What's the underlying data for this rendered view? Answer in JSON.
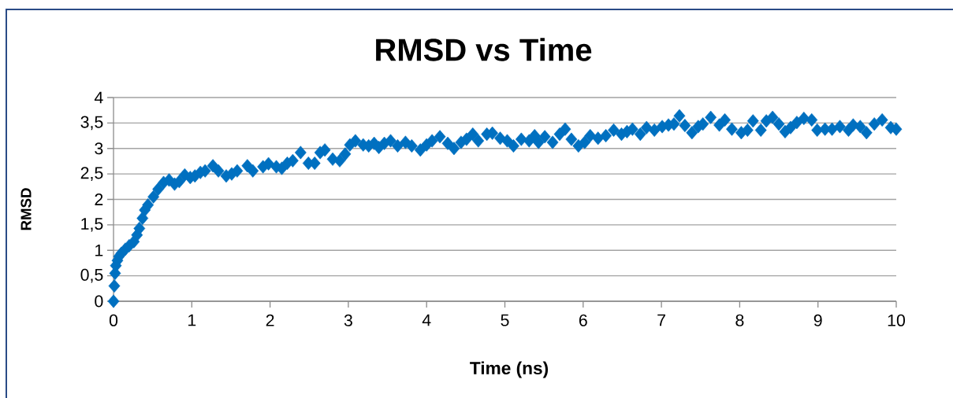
{
  "chart_data": {
    "type": "scatter",
    "title": "RMSD vs Time",
    "xlabel": "Time (ns)",
    "ylabel": "RMSD",
    "x": [
      0,
      0.01,
      0.02,
      0.03,
      0.05,
      0.07,
      0.1,
      0.15,
      0.2,
      0.26,
      0.3,
      0.33,
      0.37,
      0.4,
      0.44,
      0.51,
      0.57,
      0.64,
      0.71,
      0.78,
      0.84,
      0.91,
      0.98,
      1.04,
      1.11,
      1.17,
      1.27,
      1.34,
      1.44,
      1.51,
      1.58,
      1.71,
      1.78,
      1.91,
      1.98,
      2.08,
      2.15,
      2.22,
      2.29,
      2.39,
      2.49,
      2.57,
      2.64,
      2.7,
      2.8,
      2.89,
      2.96,
      3.02,
      3.09,
      3.19,
      3.26,
      3.33,
      3.39,
      3.46,
      3.54,
      3.63,
      3.73,
      3.81,
      3.92,
      4.0,
      4.07,
      4.17,
      4.27,
      4.35,
      4.44,
      4.51,
      4.59,
      4.66,
      4.77,
      4.84,
      4.94,
      5.03,
      5.11,
      5.21,
      5.31,
      5.38,
      5.43,
      5.51,
      5.61,
      5.7,
      5.77,
      5.85,
      5.94,
      6.02,
      6.09,
      6.19,
      6.29,
      6.39,
      6.49,
      6.56,
      6.63,
      6.73,
      6.81,
      6.91,
      7.01,
      7.09,
      7.16,
      7.23,
      7.3,
      7.39,
      7.47,
      7.53,
      7.63,
      7.74,
      7.81,
      7.9,
      8.02,
      8.1,
      8.17,
      8.27,
      8.34,
      8.42,
      8.5,
      8.58,
      8.65,
      8.73,
      8.82,
      8.92,
      8.99,
      9.09,
      9.18,
      9.28,
      9.39,
      9.45,
      9.54,
      9.62,
      9.72,
      9.82,
      9.93,
      10
    ],
    "values": [
      0,
      0.3,
      0.55,
      0.7,
      0.8,
      0.88,
      0.94,
      1.02,
      1.09,
      1.17,
      1.3,
      1.43,
      1.63,
      1.79,
      1.89,
      2.05,
      2.2,
      2.33,
      2.38,
      2.3,
      2.35,
      2.48,
      2.43,
      2.46,
      2.53,
      2.56,
      2.66,
      2.56,
      2.46,
      2.5,
      2.56,
      2.66,
      2.56,
      2.64,
      2.7,
      2.64,
      2.61,
      2.71,
      2.76,
      2.92,
      2.71,
      2.71,
      2.92,
      2.97,
      2.79,
      2.76,
      2.89,
      3.07,
      3.15,
      3.07,
      3.05,
      3.1,
      3.02,
      3.1,
      3.15,
      3.05,
      3.12,
      3.05,
      2.97,
      3.07,
      3.15,
      3.23,
      3.1,
      3.0,
      3.12,
      3.18,
      3.28,
      3.15,
      3.28,
      3.3,
      3.2,
      3.15,
      3.05,
      3.18,
      3.15,
      3.25,
      3.12,
      3.23,
      3.12,
      3.28,
      3.38,
      3.18,
      3.05,
      3.12,
      3.25,
      3.2,
      3.25,
      3.36,
      3.28,
      3.33,
      3.38,
      3.28,
      3.41,
      3.36,
      3.43,
      3.46,
      3.48,
      3.64,
      3.45,
      3.31,
      3.43,
      3.48,
      3.61,
      3.46,
      3.56,
      3.38,
      3.31,
      3.36,
      3.54,
      3.36,
      3.54,
      3.61,
      3.48,
      3.33,
      3.41,
      3.51,
      3.59,
      3.56,
      3.36,
      3.38,
      3.38,
      3.43,
      3.36,
      3.46,
      3.43,
      3.31,
      3.48,
      3.56,
      3.41,
      3.38
    ],
    "color": "#0070c0",
    "marker": "diamond",
    "xlim": [
      0,
      10
    ],
    "ylim": [
      0,
      4
    ],
    "xticks": [
      0,
      1,
      2,
      3,
      4,
      5,
      6,
      7,
      8,
      9,
      10
    ],
    "yticks": [
      0,
      {
        "value": 0.5,
        "label": "0,5"
      },
      1,
      {
        "value": 1.5,
        "label": "1,5"
      },
      2,
      {
        "value": 2.5,
        "label": "2,5"
      },
      3,
      {
        "value": 3.5,
        "label": "3,5"
      },
      4
    ],
    "grid": "y"
  }
}
